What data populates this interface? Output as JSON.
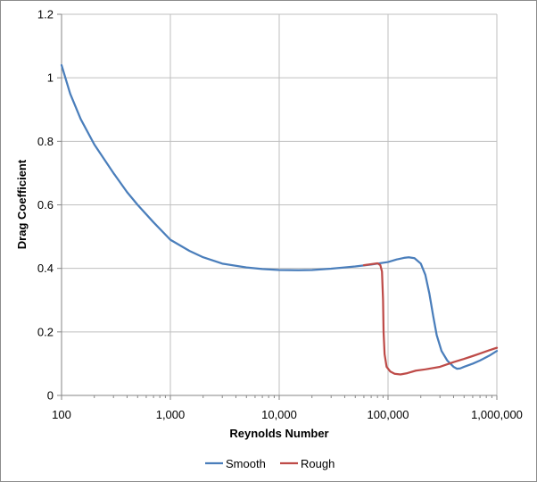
{
  "chart_data": {
    "type": "line",
    "xlabel": "Reynolds Number",
    "ylabel": "Drag Coefficient",
    "xscale": "log",
    "xlim": [
      100,
      1000000
    ],
    "ylim": [
      0,
      1.2
    ],
    "xticks": [
      100,
      1000,
      10000,
      100000,
      1000000
    ],
    "xtick_labels": [
      "100",
      "1,000",
      "10,000",
      "100,000",
      "1,000,000"
    ],
    "yticks": [
      0,
      0.2,
      0.4,
      0.6,
      0.8,
      1,
      1.2
    ],
    "ytick_labels": [
      "0",
      "0.2",
      "0.4",
      "0.6",
      "0.8",
      "1",
      "1.2"
    ],
    "grid": true,
    "legend": "bottom",
    "series": [
      {
        "name": "Smooth",
        "color": "#4a7ebb",
        "points": [
          [
            100,
            1.04
          ],
          [
            120,
            0.95
          ],
          [
            150,
            0.87
          ],
          [
            200,
            0.79
          ],
          [
            300,
            0.7
          ],
          [
            400,
            0.64
          ],
          [
            500,
            0.6
          ],
          [
            700,
            0.545
          ],
          [
            1000,
            0.49
          ],
          [
            1500,
            0.455
          ],
          [
            2000,
            0.435
          ],
          [
            3000,
            0.415
          ],
          [
            5000,
            0.403
          ],
          [
            7000,
            0.398
          ],
          [
            10000,
            0.395
          ],
          [
            15000,
            0.394
          ],
          [
            20000,
            0.395
          ],
          [
            30000,
            0.399
          ],
          [
            50000,
            0.406
          ],
          [
            70000,
            0.412
          ],
          [
            100000,
            0.42
          ],
          [
            120000,
            0.428
          ],
          [
            140000,
            0.433
          ],
          [
            155000,
            0.435
          ],
          [
            175000,
            0.432
          ],
          [
            200000,
            0.415
          ],
          [
            220000,
            0.38
          ],
          [
            240000,
            0.32
          ],
          [
            260000,
            0.25
          ],
          [
            280000,
            0.19
          ],
          [
            310000,
            0.14
          ],
          [
            350000,
            0.11
          ],
          [
            400000,
            0.09
          ],
          [
            430000,
            0.084
          ],
          [
            460000,
            0.085
          ],
          [
            500000,
            0.09
          ],
          [
            600000,
            0.1
          ],
          [
            700000,
            0.11
          ],
          [
            850000,
            0.125
          ],
          [
            1000000,
            0.14
          ]
        ]
      },
      {
        "name": "Rough",
        "color": "#be4b48",
        "points": [
          [
            60000,
            0.41
          ],
          [
            70000,
            0.413
          ],
          [
            80000,
            0.416
          ],
          [
            85000,
            0.41
          ],
          [
            88000,
            0.39
          ],
          [
            90000,
            0.3
          ],
          [
            91000,
            0.2
          ],
          [
            93000,
            0.13
          ],
          [
            97000,
            0.09
          ],
          [
            105000,
            0.075
          ],
          [
            115000,
            0.068
          ],
          [
            130000,
            0.066
          ],
          [
            150000,
            0.07
          ],
          [
            180000,
            0.078
          ],
          [
            220000,
            0.082
          ],
          [
            300000,
            0.09
          ],
          [
            400000,
            0.105
          ],
          [
            500000,
            0.115
          ],
          [
            600000,
            0.124
          ],
          [
            700000,
            0.132
          ],
          [
            850000,
            0.142
          ],
          [
            1000000,
            0.15
          ]
        ]
      }
    ]
  }
}
